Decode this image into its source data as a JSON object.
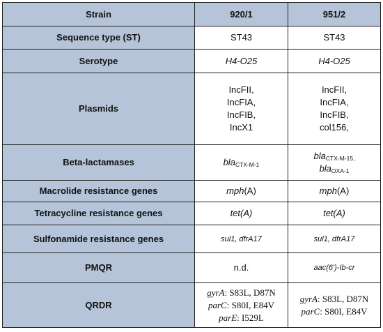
{
  "header": {
    "col1": "Strain",
    "col2": "920/1",
    "col3": "951/2"
  },
  "rows": {
    "st": {
      "label": "Sequence type (ST)",
      "a": "ST43",
      "b": "ST43"
    },
    "serotype": {
      "label": "Serotype",
      "a": "H4-O25",
      "b": "H4-O25"
    },
    "plasmids": {
      "label": "Plasmids",
      "a": [
        "IncFII,",
        "IncFIA,",
        "IncFIB,",
        "IncX1"
      ],
      "b": [
        "IncFII,",
        "IncFIA,",
        "IncFIB,",
        "col156,"
      ]
    },
    "beta": {
      "label": "Beta-lactamases",
      "a": {
        "gene": "bla",
        "sub": "CTX-M-1"
      },
      "b1": {
        "gene": "bla",
        "sub": "CTX-M-15,"
      },
      "b2": {
        "gene": "bla",
        "sub": "OXA-1"
      }
    },
    "macrolide": {
      "label": "Macrolide resistance genes",
      "gene": "mph",
      "suffix": "(A)"
    },
    "tetra": {
      "label": "Tetracycline resistance genes",
      "a": "tet(A)",
      "b": "tet(A)"
    },
    "sulfo": {
      "label": "Sulfonamide resistance genes",
      "a": "sul1, dfrA17",
      "b": "sul1, dfrA17"
    },
    "pmqr": {
      "label": "PMQR",
      "a": "n.d.",
      "b": "aac(6')-Ib-cr"
    },
    "qrdr": {
      "label": "QRDR",
      "a": [
        {
          "gene": "gyrA",
          "mut": ": S83L, D87N"
        },
        {
          "gene": "parC",
          "mut": ": S80I, E84V"
        },
        {
          "gene": "parE",
          "mut": ": I529L"
        }
      ],
      "b": [
        {
          "gene": "gyrA",
          "mut": ": S83L, D87N"
        },
        {
          "gene": "parC",
          "mut": ": S80I, E84V"
        }
      ]
    }
  }
}
